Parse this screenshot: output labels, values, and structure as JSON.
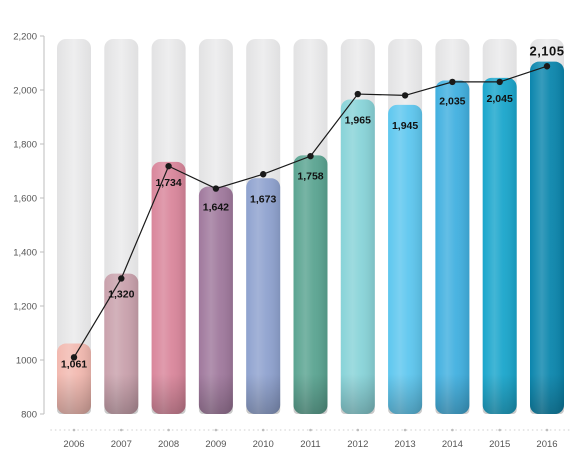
{
  "chart_data": {
    "type": "bar",
    "title": "",
    "xlabel": "",
    "ylabel": "",
    "ylim": [
      800,
      2200
    ],
    "yticks": [
      "800",
      "1000",
      "1,200",
      "1,400",
      "1,600",
      "1,800",
      "2,000",
      "2,200"
    ],
    "ytick_values": [
      800,
      1000,
      1200,
      1400,
      1600,
      1800,
      2000,
      2200
    ],
    "categories": [
      "2006",
      "2007",
      "2008",
      "2009",
      "2010",
      "2011",
      "2012",
      "2013",
      "2014",
      "2015",
      "2016"
    ],
    "values": [
      1061,
      1320,
      1734,
      1642,
      1673,
      1758,
      1965,
      1945,
      2035,
      2045,
      2105
    ],
    "value_labels": [
      "1,061",
      "1,320",
      "1,734",
      "1,642",
      "1,673",
      "1,758",
      "1,965",
      "1,945",
      "2,035",
      "2,045",
      "2,105"
    ],
    "line_values": [
      1010,
      1302,
      1718,
      1635,
      1688,
      1755,
      1985,
      1980,
      2030,
      2030,
      2088
    ],
    "bar_colors": [
      "#f2b9b0",
      "#c9a1ac",
      "#d9869b",
      "#a0799d",
      "#8fa2cf",
      "#5aa491",
      "#88d3d8",
      "#5ec7ef",
      "#41b0e0",
      "#1aa6cc",
      "#0b86ad"
    ],
    "track_color": "#e9e9ea",
    "line_color": "#1a1a1a",
    "grid": false
  }
}
